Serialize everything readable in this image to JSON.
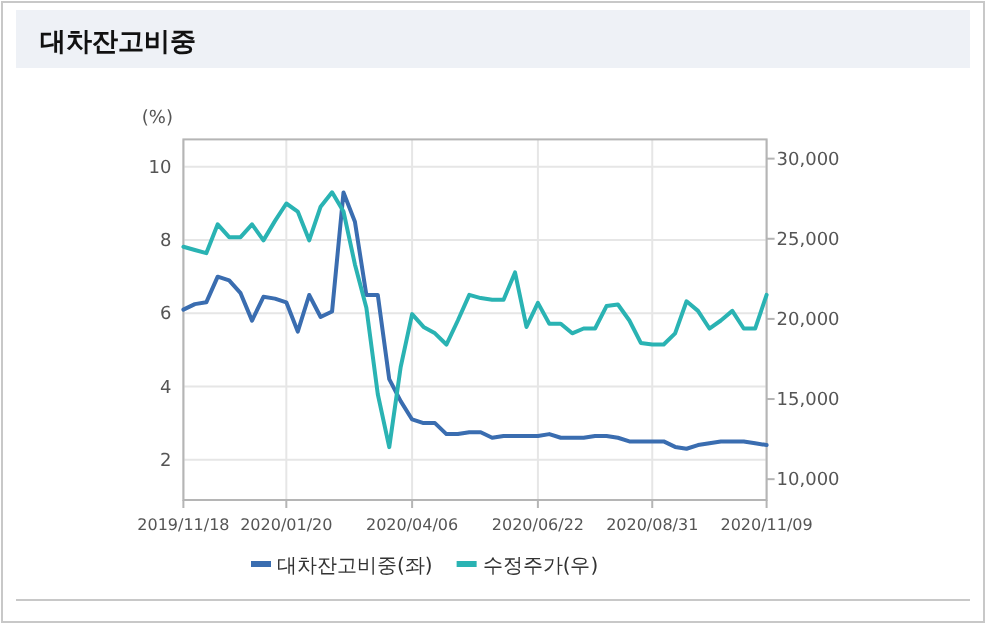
{
  "chart_data": {
    "type": "line",
    "title": "대차잔고비중",
    "ylabel": "(%)",
    "x": [
      "2019-11-18",
      "2019-11-25",
      "2019-12-02",
      "2019-12-09",
      "2019-12-16",
      "2019-12-23",
      "2019-12-30",
      "2020-01-06",
      "2020-01-13",
      "2020-01-20",
      "2020-01-27",
      "2020-02-03",
      "2020-02-10",
      "2020-02-17",
      "2020-02-24",
      "2020-03-02",
      "2020-03-09",
      "2020-03-16",
      "2020-03-23",
      "2020-03-30",
      "2020-04-06",
      "2020-04-13",
      "2020-04-20",
      "2020-04-27",
      "2020-05-04",
      "2020-05-11",
      "2020-05-18",
      "2020-05-25",
      "2020-06-01",
      "2020-06-08",
      "2020-06-15",
      "2020-06-22",
      "2020-06-29",
      "2020-07-06",
      "2020-07-13",
      "2020-07-20",
      "2020-07-27",
      "2020-08-03",
      "2020-08-10",
      "2020-08-17",
      "2020-08-24",
      "2020-08-31",
      "2020-09-07",
      "2020-09-14",
      "2020-09-21",
      "2020-09-28",
      "2020-10-05",
      "2020-10-12",
      "2020-10-19",
      "2020-10-26",
      "2020-11-02",
      "2020-11-09"
    ],
    "series": [
      {
        "name": "대차잔고비중(좌)",
        "color": "#3a6db0",
        "values": [
          6.1,
          6.25,
          6.3,
          7.0,
          6.9,
          6.55,
          5.8,
          6.45,
          6.4,
          6.3,
          5.5,
          6.5,
          5.9,
          6.05,
          9.3,
          8.5,
          6.5,
          6.5,
          4.2,
          3.6,
          3.1,
          3.0,
          3.0,
          2.7,
          2.7,
          2.75,
          2.75,
          2.6,
          2.65,
          2.65,
          2.65,
          2.65,
          2.7,
          2.6,
          2.6,
          2.6,
          2.65,
          2.65,
          2.6,
          2.5,
          2.5,
          2.5,
          2.5,
          2.35,
          2.3,
          2.4,
          2.45,
          2.5,
          2.5,
          2.5,
          2.45,
          2.4
        ]
      },
      {
        "name": "수정주가(우)",
        "color": "#2ab3b3",
        "axis": "y2",
        "values": [
          24500,
          24300,
          24100,
          25900,
          25100,
          25100,
          25900,
          24900,
          26100,
          27200,
          26700,
          24900,
          27000,
          27900,
          26700,
          23400,
          20700,
          15300,
          12000,
          17000,
          20300,
          19500,
          19100,
          18400,
          19900,
          21500,
          21300,
          21200,
          21200,
          22900,
          19500,
          21000,
          19700,
          19700,
          19100,
          19400,
          19400,
          20800,
          20900,
          19900,
          18500,
          18400,
          18400,
          19100,
          21100,
          20500,
          19400,
          19900,
          20500,
          19400,
          19400,
          21500
        ]
      }
    ],
    "xlim": [
      "2019-11-18",
      "2020-11-09"
    ],
    "xticks": [
      {
        "value": "2019-11-18",
        "label": "2019/11/18"
      },
      {
        "value": "2020-01-20",
        "label": "2020/01/20"
      },
      {
        "value": "2020-04-06",
        "label": "2020/04/06"
      },
      {
        "value": "2020-06-22",
        "label": "2020/06/22"
      },
      {
        "value": "2020-08-31",
        "label": "2020/08/31"
      },
      {
        "value": "2020-11-09",
        "label": "2020/11/09"
      }
    ],
    "ylim": [
      0.9,
      10.75
    ],
    "yticks": [
      2,
      4,
      6,
      8,
      10
    ],
    "y2lim": [
      8700,
      31200
    ],
    "y2ticks": [
      {
        "value": 10000,
        "label": "10,000"
      },
      {
        "value": 15000,
        "label": "15,000"
      },
      {
        "value": 20000,
        "label": "20,000"
      },
      {
        "value": 25000,
        "label": "25,000"
      },
      {
        "value": 30000,
        "label": "30,000"
      }
    ],
    "grid": true,
    "legend": "bottom"
  }
}
